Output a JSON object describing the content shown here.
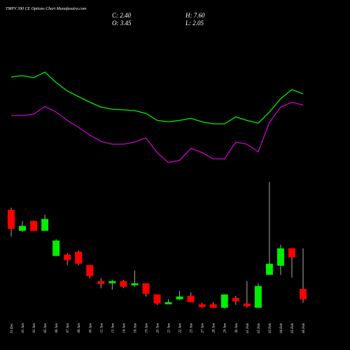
{
  "chart_data": {
    "type": "candlestick",
    "title": "TMPV 390  CE Options Chart Munafasutra.com",
    "ohlc_labels": {
      "close": "C: 2.40",
      "high": "H: 7.60",
      "open": "O: 3.45",
      "low": "L: 2.05"
    },
    "categories": [
      "31 Dec",
      "01 Jan",
      "02 Jan",
      "05 Jan",
      "06 Jan",
      "07 Jan",
      "08 Jan",
      "09 Jan",
      "12 Jan",
      "13 Jan",
      "14 Jan",
      "16 Jan",
      "19 Jan",
      "20 Jan",
      "21 Jan",
      "22 Jan",
      "23 Jan",
      "27 Jan",
      "28 Jan",
      "29 Jan",
      "30 Jan",
      "01 Feb",
      "02 Feb",
      "03 Feb",
      "04 Feb",
      "05 Feb",
      "06 Feb"
    ],
    "open": [
      11.54,
      9.4,
      10.4,
      9.4,
      6.83,
      6.97,
      7.26,
      5.9,
      4.26,
      4.04,
      4.26,
      3.83,
      4.04,
      2.9,
      1.9,
      2.4,
      2.76,
      1.9,
      1.9,
      1.54,
      2.54,
      1.97,
      1.54,
      4.9,
      5.83,
      7.61,
      3.45
    ],
    "high": [
      11.76,
      10.4,
      10.47,
      11.04,
      8.54,
      7.11,
      7.4,
      5.9,
      4.54,
      4.4,
      4.4,
      5.33,
      4.04,
      2.9,
      2.4,
      3.26,
      3.11,
      2.04,
      2.11,
      2.9,
      2.76,
      4.26,
      4.04,
      14.4,
      7.97,
      7.61,
      7.6
    ],
    "low": [
      8.83,
      9.26,
      9.4,
      9.4,
      6.8,
      5.9,
      5.9,
      4.54,
      3.54,
      3.4,
      3.54,
      3.69,
      2.69,
      1.83,
      1.9,
      2.33,
      2.11,
      1.54,
      1.54,
      1.47,
      1.83,
      1.54,
      1.54,
      4.9,
      4.9,
      4.61,
      2.05
    ],
    "close": [
      9.61,
      9.9,
      9.4,
      10.61,
      8.4,
      6.4,
      6.04,
      4.76,
      3.97,
      4.26,
      3.69,
      4.04,
      2.97,
      1.97,
      2.11,
      2.69,
      2.11,
      1.61,
      1.54,
      2.9,
      2.19,
      1.69,
      3.76,
      6.04,
      7.61,
      6.69,
      2.4
    ],
    "ylim": [
      0.8,
      15.1
    ],
    "up_color": "#00ee00",
    "down_color": "#ff0000",
    "wick_color": "#aaaaaa",
    "lines": [
      {
        "color": "#00ee00",
        "values": [
          190,
          192,
          189,
          197,
          182,
          170,
          162,
          154,
          147,
          144,
          143,
          142,
          138,
          128,
          126,
          128,
          131,
          126,
          123,
          123,
          133,
          128,
          124,
          140,
          159,
          172,
          166
        ]
      },
      {
        "color": "#cc00cc",
        "values": [
          135,
          135,
          137,
          148,
          140,
          128,
          118,
          107,
          98,
          94,
          94,
          97,
          103,
          82,
          68,
          71,
          88,
          82,
          73,
          73,
          97,
          94,
          83,
          125,
          147,
          154,
          150
        ]
      }
    ],
    "y2lim": [
      0,
      300
    ]
  }
}
